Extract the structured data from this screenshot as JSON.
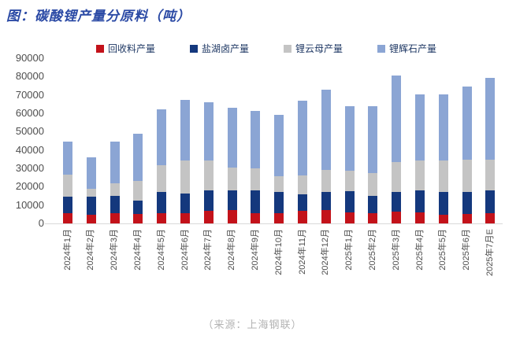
{
  "title": "图：碳酸锂产量分原料（吨）",
  "footer": "（来源：上海钢联）",
  "colors": {
    "recycled_red": "#c3121a",
    "salt_lake_navy": "#14387d",
    "mica_gray": "#c4c4c4",
    "spodumene_blue": "#8ba5d4",
    "title_blue": "#2b4aa5",
    "legend_text": "#1f3864",
    "axis_text": "#4d4d4d",
    "axis_line": "#d9d9d9"
  },
  "legend": {
    "items": [
      {
        "label": "回收料产量",
        "color": "#c3121a"
      },
      {
        "label": "盐湖卤产量",
        "color": "#14387d"
      },
      {
        "label": "锂云母产量",
        "color": "#c4c4c4"
      },
      {
        "label": "锂辉石产量",
        "color": "#8ba5d4"
      }
    ]
  },
  "chart_data": {
    "type": "bar",
    "stacked": true,
    "title": "图：碳酸锂产量分原料（吨）",
    "xlabel": "",
    "ylabel": "",
    "ylim": [
      0,
      90000
    ],
    "yticks": [
      0,
      10000,
      20000,
      30000,
      40000,
      50000,
      60000,
      70000,
      80000,
      90000
    ],
    "grid": false,
    "legend_position": "top",
    "categories": [
      "2024年1月",
      "2024年2月",
      "2024年3月",
      "2024年4月",
      "2024年5月",
      "2024年6月",
      "2024年7月",
      "2024年8月",
      "2024年9月",
      "2024年10月",
      "2024年11月",
      "2024年12月",
      "2025年1月",
      "2025年2月",
      "2025年3月",
      "2025年4月",
      "2025年5月",
      "2025年6月",
      "2025年7月E"
    ],
    "series": [
      {
        "name": "回收料产量",
        "color": "#c3121a",
        "values": [
          5700,
          4700,
          5700,
          5000,
          5700,
          5500,
          6800,
          7200,
          5700,
          5700,
          6800,
          7500,
          6000,
          5700,
          6500,
          6200,
          4700,
          5300,
          5700
        ]
      },
      {
        "name": "盐湖卤产量",
        "color": "#14387d",
        "values": [
          8700,
          9700,
          9100,
          7500,
          11500,
          11000,
          11200,
          11000,
          12100,
          11500,
          9000,
          9500,
          11500,
          9400,
          10700,
          11800,
          12500,
          11900,
          12300
        ]
      },
      {
        "name": "锂云母产量",
        "color": "#c4c4c4",
        "values": [
          12200,
          4600,
          7000,
          10800,
          14400,
          17700,
          16500,
          12300,
          12100,
          8700,
          10300,
          12200,
          11200,
          12500,
          16100,
          16500,
          17000,
          17600,
          16800
        ]
      },
      {
        "name": "锂辉石产量",
        "color": "#8ba5d4",
        "values": [
          17900,
          17200,
          22700,
          25600,
          30600,
          33000,
          31300,
          32300,
          31200,
          33300,
          40700,
          43600,
          35200,
          36200,
          47200,
          35900,
          36200,
          39900,
          44500
        ]
      }
    ],
    "totals": [
      44500,
      36200,
      44500,
      48900,
      62200,
      67200,
      65800,
      62800,
      61100,
      59200,
      66800,
      72800,
      63900,
      63800,
      80500,
      70400,
      70400,
      74700,
      79300
    ]
  }
}
